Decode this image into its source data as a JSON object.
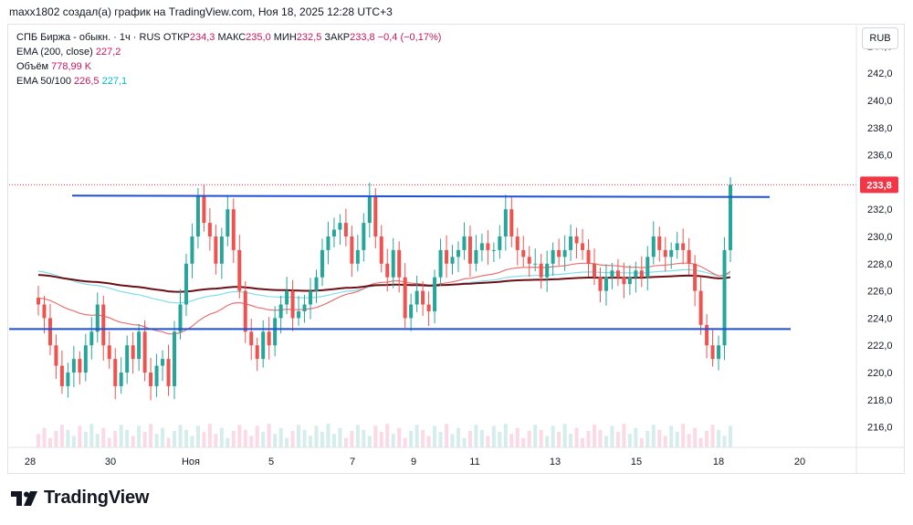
{
  "header": {
    "author_line": "maxx1802 создал(а) график на TradingView.com, Ноя 18, 2025 12:28 UTC+3"
  },
  "legend": {
    "symbol": "СПБ Биржа - обыкн. · 1ч · RUS",
    "open_label": "ОТКР",
    "open": "234,3",
    "high_label": "МАКС",
    "high": "235,0",
    "low_label": "МИН",
    "low": "232,5",
    "close_label": "ЗАКР",
    "close": "233,8",
    "change": "−0,4 (−0,17%)",
    "ema200_label": "EMA (200, close)",
    "ema200_value": "227,2",
    "volume_label": "Объём",
    "volume_value": "778,99 K",
    "ema50_100_label": "EMA 50/100",
    "ema50_value": "226,5",
    "ema100_value": "227,1"
  },
  "currency_button": "RUB",
  "brand": {
    "name": "TradingView"
  },
  "colors": {
    "up": "#26a69a",
    "down": "#ef5350",
    "ema200": "#6d0f14",
    "ema50": "#e57373",
    "ema100": "#80deea",
    "level": "#1e4fd8",
    "price_tag": "#f23645"
  },
  "chart_data": {
    "type": "candlestick",
    "title": "",
    "ylim": [
      214.5,
      245.5
    ],
    "y_ticks": [
      "216,0",
      "218,0",
      "220,0",
      "222,0",
      "224,0",
      "226,0",
      "228,0",
      "230,0",
      "232,0",
      "234,0",
      "236,0",
      "238,0",
      "240,0",
      "242,0",
      "244,0"
    ],
    "x_ticks": [
      "28",
      "30",
      "Ноя",
      "5",
      "7",
      "9",
      "11",
      "13",
      "15",
      "18",
      "20"
    ],
    "last_price": "233,8",
    "last_price_value": 233.8,
    "closes": [
      225.0,
      224.0,
      222.0,
      220.5,
      219.0,
      220.0,
      221.0,
      220.0,
      222.0,
      223.0,
      225.0,
      222.0,
      221.0,
      219.0,
      220.0,
      222.0,
      221.0,
      223.0,
      220.0,
      219.0,
      220.5,
      221.0,
      219.0,
      223.0,
      225.0,
      228.0,
      230.0,
      233.0,
      231.0,
      230.0,
      228.0,
      230.0,
      232.0,
      229.0,
      226.0,
      223.0,
      222.0,
      221.0,
      223.0,
      222.0,
      224.0,
      225.0,
      226.0,
      224.0,
      224.5,
      225.0,
      226.0,
      227.0,
      229.0,
      230.0,
      230.5,
      231.0,
      230.0,
      228.0,
      229.0,
      231.0,
      233.0,
      230.0,
      228.0,
      227.0,
      229.0,
      227.0,
      224.0,
      225.0,
      226.0,
      225.0,
      224.5,
      227.0,
      229.0,
      228.0,
      228.5,
      229.0,
      230.0,
      228.0,
      229.0,
      229.5,
      229.0,
      229.0,
      230.0,
      232.0,
      230.0,
      229.0,
      228.5,
      228.0,
      228.0,
      227.0,
      228.0,
      229.0,
      228.5,
      229.0,
      230.0,
      229.5,
      229.0,
      228.0,
      227.0,
      226.0,
      227.0,
      227.5,
      227.0,
      226.5,
      227.0,
      227.5,
      227.0,
      228.5,
      230.0,
      229.0,
      228.5,
      229.0,
      229.5,
      229.0,
      228.0,
      226.0,
      223.5,
      222.0,
      221.0,
      222.0,
      229.0,
      233.8
    ],
    "volume_label_value": "778,99 K",
    "series": [
      {
        "name": "EMA (200, close)"
      },
      {
        "name": "EMA 50/100"
      }
    ]
  }
}
